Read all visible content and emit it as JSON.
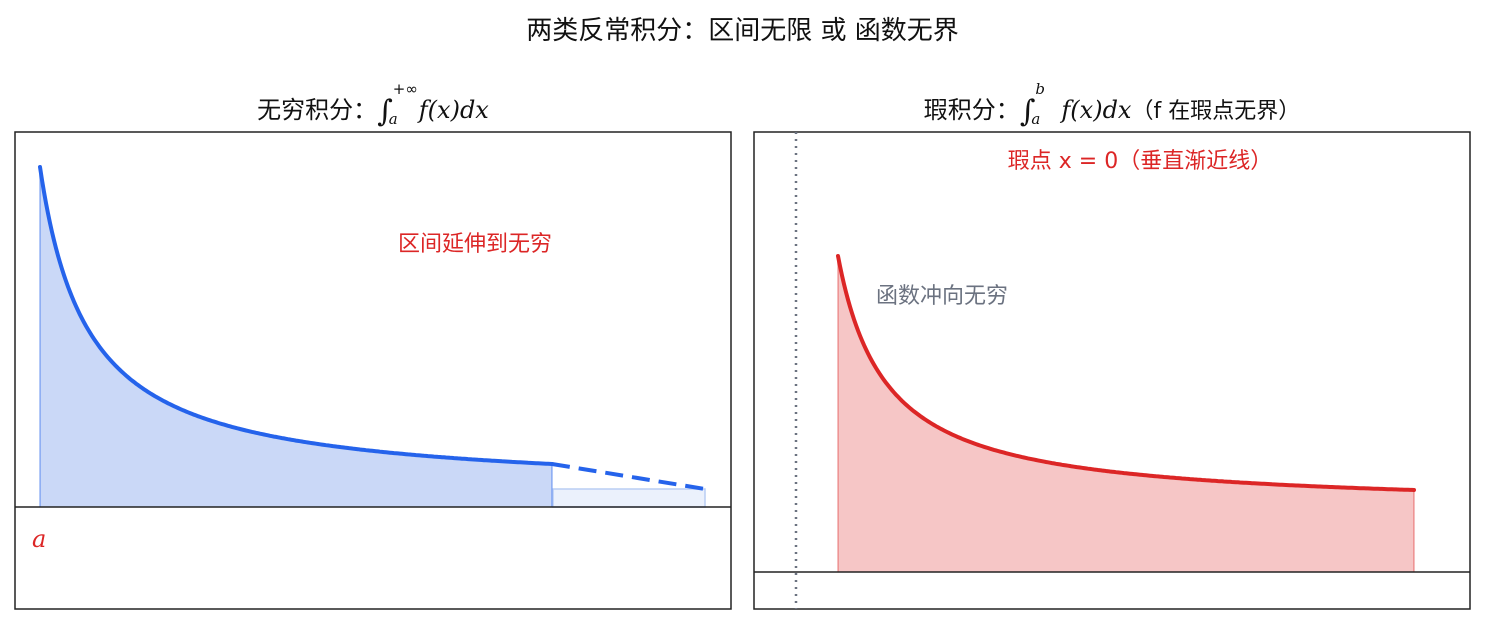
{
  "figure": {
    "title": "两类反常积分：区间无限 或 函数无界"
  },
  "left_panel": {
    "title_prefix": "无穷积分：",
    "upper_limit": "+∞",
    "lower_limit": "a",
    "integrand": "f(x)dx",
    "annotation": "区间延伸到无穷",
    "point_label": "a",
    "colors": {
      "curve": "#2563eb",
      "fill": "#c7d6f7",
      "annotation": "#dc2626"
    }
  },
  "right_panel": {
    "title_prefix": "瑕积分：",
    "upper_limit": "b",
    "lower_limit": "a",
    "integrand": "f(x)dx",
    "title_note": "（f 在瑕点无界）",
    "asymptote_label": "瑕点 x = 0（垂直渐近线）",
    "annotation": "函数冲向无穷",
    "colors": {
      "curve": "#dc2626",
      "fill": "#f6c6c6",
      "asymptote": "#6b7280",
      "annotation_gray": "#6b7280"
    }
  }
}
